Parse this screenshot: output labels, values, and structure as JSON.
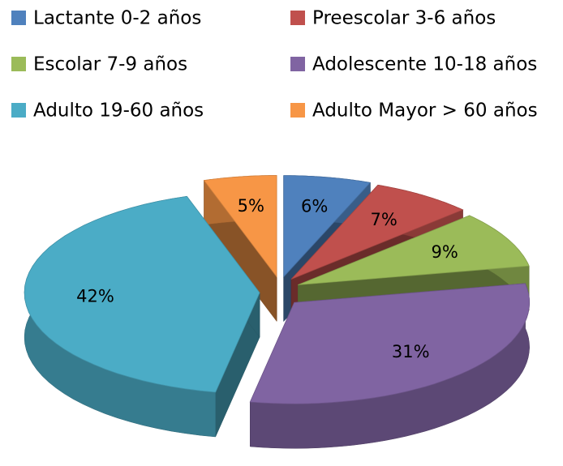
{
  "chart_data": {
    "type": "pie3d",
    "categories": [
      "Lactante 0-2 años",
      "Preescolar 3-6 años",
      "Escolar 7-9 años",
      "Adolescente 10-18 años",
      "Adulto 19-60 años",
      "Adulto Mayor  > 60 años"
    ],
    "values": [
      6,
      7,
      9,
      31,
      42,
      5
    ],
    "value_labels": [
      "6%",
      "7%",
      "9%",
      "31%",
      "42%",
      "5%"
    ],
    "colors": [
      "#4f81bd",
      "#c0504d",
      "#9bbb59",
      "#8064a2",
      "#4bacc6",
      "#f79646"
    ],
    "legend": "top"
  }
}
